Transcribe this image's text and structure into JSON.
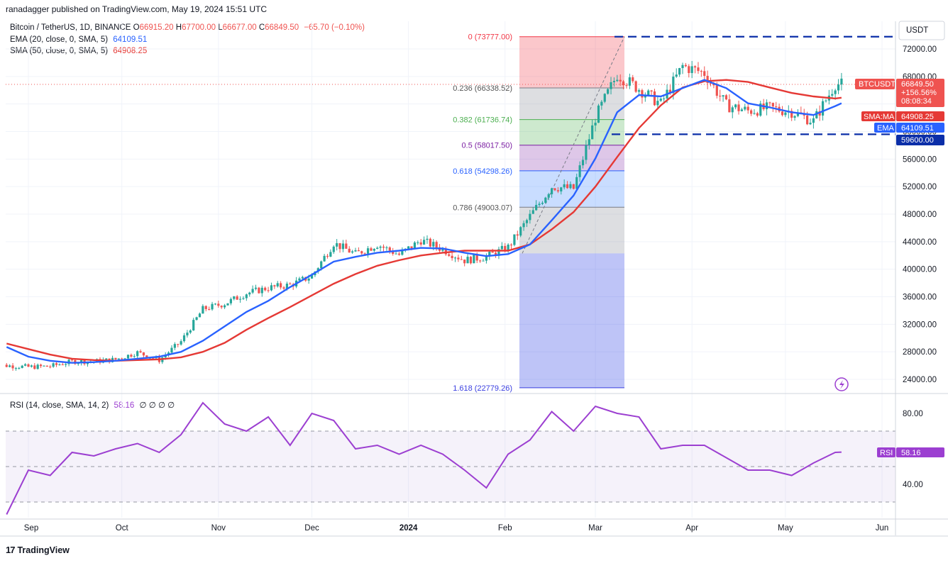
{
  "header": {
    "publisher_line": "ranadagger published on TradingView.com, May 19, 2024 15:51 UTC"
  },
  "legend": {
    "symbol_line": "Bitcoin / TetherUS, 1D, BINANCE",
    "ohlc": [
      {
        "k": "O",
        "v": "66915.20"
      },
      {
        "k": "H",
        "v": "67700.00"
      },
      {
        "k": "L",
        "v": "66677.00"
      },
      {
        "k": "C",
        "v": "66849.50"
      }
    ],
    "change": "−65.70 (−0.10%)",
    "ema_label": "EMA (20, close, 0, SMA, 5)",
    "ema_value": "64109.51",
    "sma_label": "SMA (50, close, 0, SMA, 5)",
    "sma_value": "64908.25",
    "rsi_label": "RSI (14, close, SMA, 14, 2)",
    "rsi_value": "58.16",
    "rsi_extra": "∅ ∅ ∅ ∅"
  },
  "colors": {
    "up": "#26a69a",
    "down": "#ef5350",
    "ema": "#2962ff",
    "sma": "#e53935",
    "rsi": "#9c3fd1",
    "level": "#0b2ea8",
    "axis_text": "#131722"
  },
  "price_axis": {
    "currency_label": "USDT",
    "ticks": [
      "72000.00",
      "68000.00",
      "64000.00",
      "60000.00",
      "56000.00",
      "52000.00",
      "48000.00",
      "44000.00",
      "40000.00",
      "36000.00",
      "32000.00",
      "28000.00",
      "24000.00"
    ],
    "tick_values": [
      72000,
      68000,
      64000,
      60000,
      56000,
      52000,
      48000,
      44000,
      40000,
      36000,
      32000,
      28000,
      24000
    ]
  },
  "badges": {
    "symbol": "BTCUSDT",
    "price": "66849.50",
    "pct": "+156.56%",
    "countdown": "08:08:34",
    "sma_tag": "SMA:MA",
    "sma_val": "64908.25",
    "ema_tag": "EMA",
    "ema_val": "64109.51",
    "level_val": "59600.00"
  },
  "rsi_axis": {
    "ticks": [
      "80.00",
      "40.00"
    ],
    "tag": "RSI",
    "value": "58.16"
  },
  "time_axis": {
    "labels": [
      "Sep",
      "Oct",
      "Nov",
      "Dec",
      "2024",
      "Feb",
      "Mar",
      "Apr",
      "May",
      "Jun"
    ]
  },
  "fib_levels": [
    {
      "label": "0 (73777.00)",
      "price": 73777.0
    },
    {
      "label": "0.236 (66338.52)",
      "price": 66338.52
    },
    {
      "label": "0.382 (61736.74)",
      "price": 61736.74
    },
    {
      "label": "0.5 (58017.50)",
      "price": 58017.5
    },
    {
      "label": "0.618 (54298.26)",
      "price": 54298.26
    },
    {
      "label": "0.786 (49003.07)",
      "price": 49003.07
    },
    {
      "label": "1.618 (22779.26)",
      "price": 22779.26
    }
  ],
  "footer": {
    "brand": "TradingView"
  },
  "chart_data": {
    "type": "candlestick",
    "title": "Bitcoin / TetherUS, 1D, BINANCE",
    "ylim": [
      22000,
      75000
    ],
    "support_level": 59600,
    "resistance_level": 73777,
    "x": [
      "2023-08-25",
      "2023-09-01",
      "2023-09-08",
      "2023-09-15",
      "2023-09-22",
      "2023-09-29",
      "2023-10-06",
      "2023-10-13",
      "2023-10-20",
      "2023-10-27",
      "2023-11-03",
      "2023-11-10",
      "2023-11-17",
      "2023-11-24",
      "2023-12-01",
      "2023-12-08",
      "2023-12-15",
      "2023-12-22",
      "2023-12-29",
      "2024-01-05",
      "2024-01-12",
      "2024-01-19",
      "2024-01-26",
      "2024-02-02",
      "2024-02-09",
      "2024-02-16",
      "2024-02-23",
      "2024-03-01",
      "2024-03-08",
      "2024-03-15",
      "2024-03-22",
      "2024-03-29",
      "2024-04-05",
      "2024-04-12",
      "2024-04-19",
      "2024-04-26",
      "2024-05-03",
      "2024-05-10",
      "2024-05-17",
      "2024-05-19"
    ],
    "close": [
      26000,
      25800,
      25900,
      26600,
      26600,
      26900,
      27900,
      26800,
      29500,
      34200,
      35000,
      36500,
      37300,
      37700,
      39000,
      43800,
      42200,
      43600,
      42100,
      44200,
      42900,
      41300,
      41800,
      43200,
      47700,
      52000,
      51700,
      62000,
      68300,
      66200,
      64000,
      69500,
      68500,
      63800,
      63000,
      63400,
      62900,
      61500,
      66900,
      66849.5
    ],
    "ema20": [
      28700,
      27300,
      26700,
      26400,
      26500,
      26700,
      27000,
      27300,
      28000,
      29600,
      31700,
      33800,
      35400,
      37400,
      39200,
      41100,
      41800,
      42400,
      42700,
      43100,
      43000,
      42400,
      41900,
      42200,
      43600,
      47100,
      50700,
      56100,
      62800,
      65300,
      65100,
      66300,
      67500,
      66300,
      64100,
      63500,
      62800,
      62400,
      63700,
      64109.51
    ],
    "sma50": [
      29200,
      28400,
      27600,
      27000,
      26800,
      26700,
      26800,
      26900,
      27200,
      28000,
      29300,
      31200,
      32900,
      34500,
      36200,
      37900,
      39300,
      40500,
      41300,
      42000,
      42400,
      42700,
      42700,
      42700,
      43600,
      45800,
      48300,
      52000,
      56300,
      60500,
      63800,
      66400,
      67300,
      67500,
      67200,
      66400,
      65600,
      65100,
      64800,
      64908.25
    ],
    "rsi": [
      23,
      48,
      45,
      58,
      56,
      60,
      63,
      58,
      68,
      86,
      74,
      70,
      78,
      62,
      80,
      76,
      60,
      62,
      57,
      62,
      57,
      48,
      38,
      57,
      65,
      81,
      70,
      84,
      80,
      78,
      60,
      62,
      62,
      55,
      48,
      48,
      45,
      52,
      58,
      58.16
    ],
    "rsi_ylim": [
      20,
      100
    ]
  }
}
